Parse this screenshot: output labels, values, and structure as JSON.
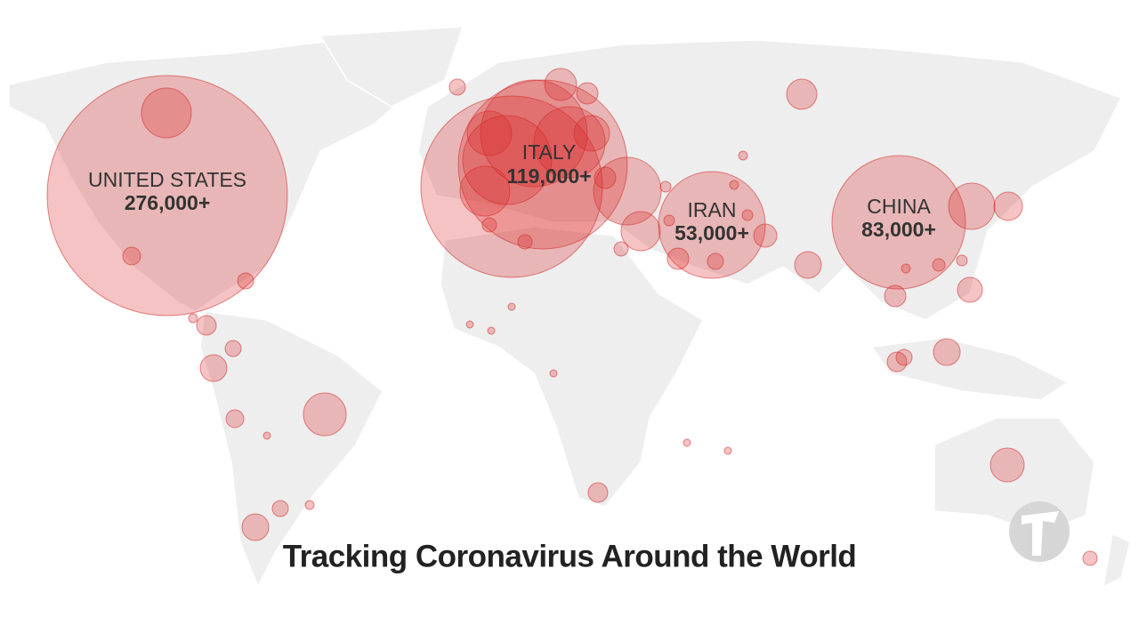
{
  "title": "Tracking Coronavirus Around the World",
  "labels": [
    {
      "name": "UNITED STATES",
      "count": "276,000+"
    },
    {
      "name": "ITALY",
      "count": "119,000+"
    },
    {
      "name": "IRAN",
      "count": "53,000+"
    },
    {
      "name": "CHINA",
      "count": "83,000+"
    }
  ]
}
